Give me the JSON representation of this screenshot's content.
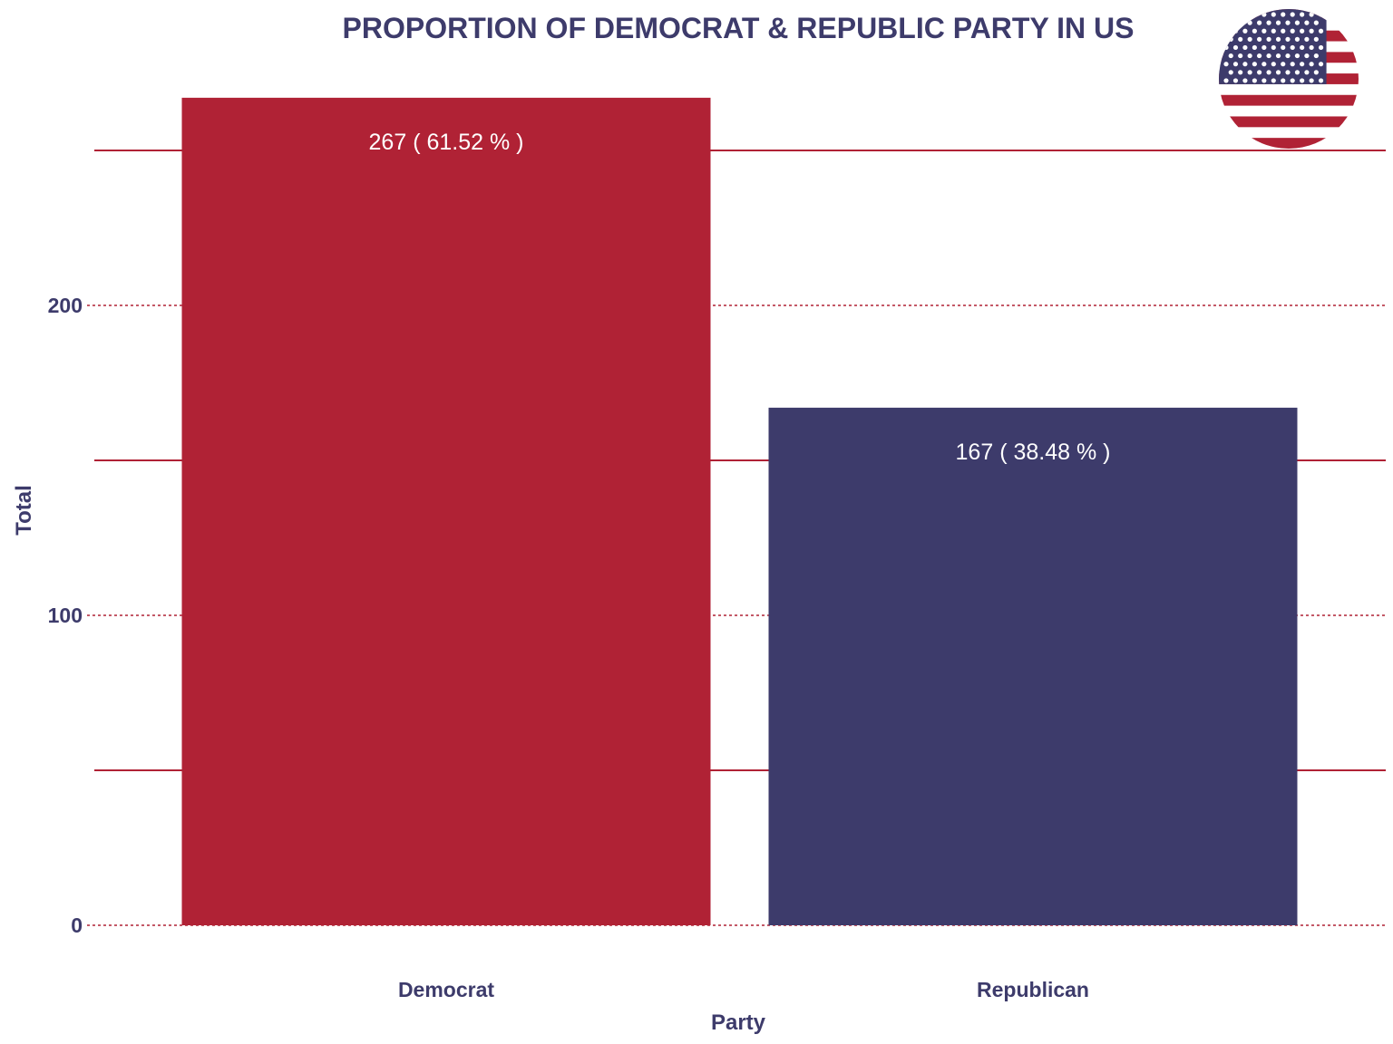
{
  "chart_data": {
    "type": "bar",
    "title": "PROPORTION OF DEMOCRAT & REPUBLIC PARTY IN US",
    "xlabel": "Party",
    "ylabel": "Total",
    "categories": [
      "Democrat",
      "Republican"
    ],
    "values": [
      267,
      167
    ],
    "data_labels": [
      "267 ( 61.52 % )",
      "167 ( 38.48 % )"
    ],
    "bar_colors": [
      "#b02235",
      "#3d3b6b"
    ],
    "yticks": [
      0,
      100,
      200
    ],
    "ylim": [
      0,
      267
    ],
    "grid": true,
    "legend": "none",
    "grid_color": "#b02235",
    "text_color": "#3d3b6b"
  },
  "flag": {
    "icon": "us-flag-icon",
    "colors": {
      "red": "#b02235",
      "blue": "#3d3b6b",
      "white": "#ffffff"
    }
  }
}
